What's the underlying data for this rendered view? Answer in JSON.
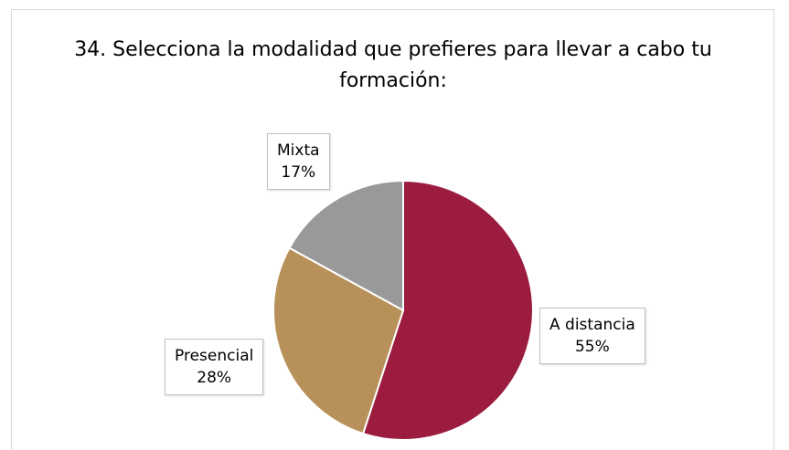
{
  "chart_data": {
    "type": "pie",
    "title": "34. Selecciona la modalidad que prefieres para llevar a cabo tu formación:",
    "categories": [
      "A distancia",
      "Presencial",
      "Mixta"
    ],
    "values": [
      55,
      28,
      17
    ],
    "value_labels": [
      "55%",
      "28%",
      "17%"
    ],
    "colors": [
      "#9b1c3f",
      "#b8915a",
      "#999999"
    ]
  }
}
